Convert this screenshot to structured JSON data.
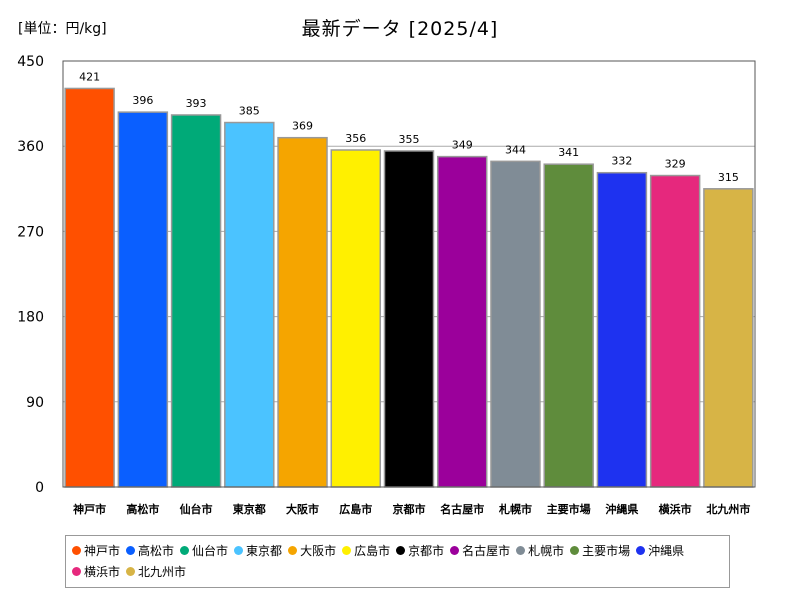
{
  "chart_data": {
    "type": "bar",
    "title": "最新データ [2025/4]",
    "unit_label": "[単位：円/kg]",
    "categories": [
      "神戸市",
      "高松市",
      "仙台市",
      "東京都",
      "大阪市",
      "広島市",
      "京都市",
      "名古屋市",
      "札幌市",
      "主要市場",
      "沖縄県",
      "横浜市",
      "北九州市"
    ],
    "values": [
      421,
      396,
      393,
      385,
      369,
      356,
      355,
      349,
      344,
      341,
      332,
      329,
      315
    ],
    "colors": [
      "#ff5000",
      "#0a5fff",
      "#00aa78",
      "#4bc3ff",
      "#f5a500",
      "#fff000",
      "#000000",
      "#9b009b",
      "#808c96",
      "#5f8c3c",
      "#1e32f0",
      "#e6287d",
      "#d7b446"
    ],
    "ylim": [
      0,
      450
    ],
    "yticks": [
      0,
      90,
      180,
      270,
      360,
      450
    ],
    "grid": "horizontal",
    "legend_position": "bottom"
  }
}
